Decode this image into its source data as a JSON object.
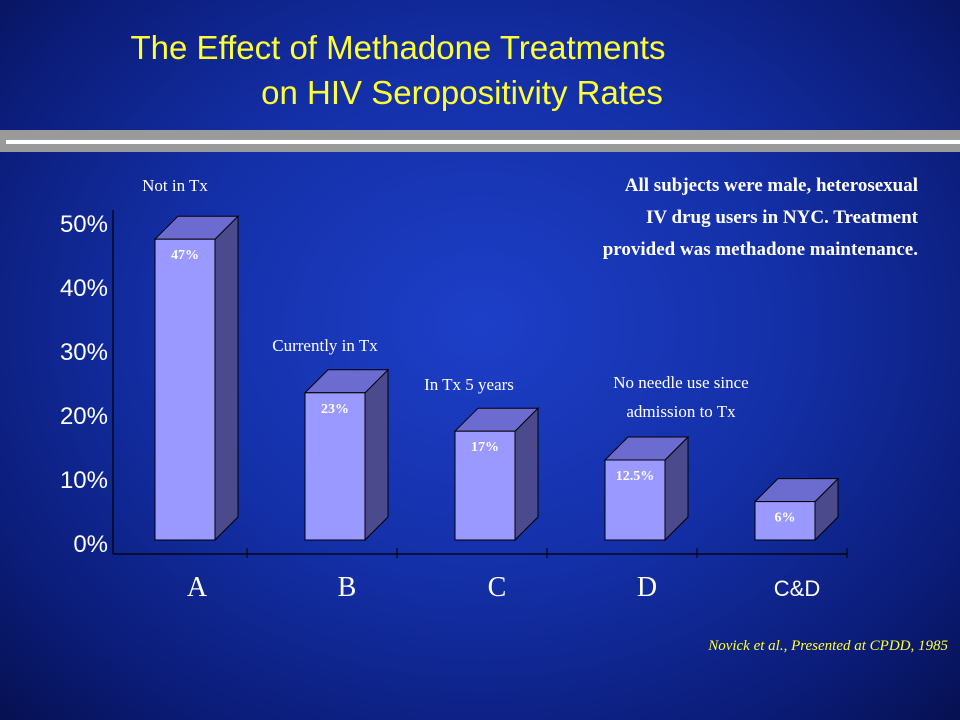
{
  "title_line1": "The Effect of Methadone Treatments",
  "title_line2": "on HIV Seropositivity Rates",
  "note_line1": "All subjects were male, heterosexual",
  "note_line2": "IV drug users in NYC.  Treatment",
  "note_line3": "provided was methadone maintenance.",
  "citation": "Novick et al., Presented at CPDD, 1985",
  "colors": {
    "title": "#ffff33",
    "bar_front": "#9999ff",
    "bar_side": "#4a4a8c",
    "bar_top": "#6b6bd0"
  },
  "chart_data": {
    "type": "bar",
    "categories": [
      "A",
      "B",
      "C",
      "D",
      "C&D"
    ],
    "values": [
      47,
      23,
      17,
      12.5,
      6
    ],
    "value_labels": [
      "47%",
      "23%",
      "17%",
      "12.5%",
      "6%"
    ],
    "group_labels": [
      "Not in Tx",
      "Currently in Tx",
      "In Tx 5 years",
      "No needle use since admission to Tx",
      ""
    ],
    "y_ticks": [
      "0%",
      "10%",
      "20%",
      "30%",
      "40%",
      "50%"
    ],
    "ylim": [
      0,
      50
    ],
    "grid": false
  }
}
